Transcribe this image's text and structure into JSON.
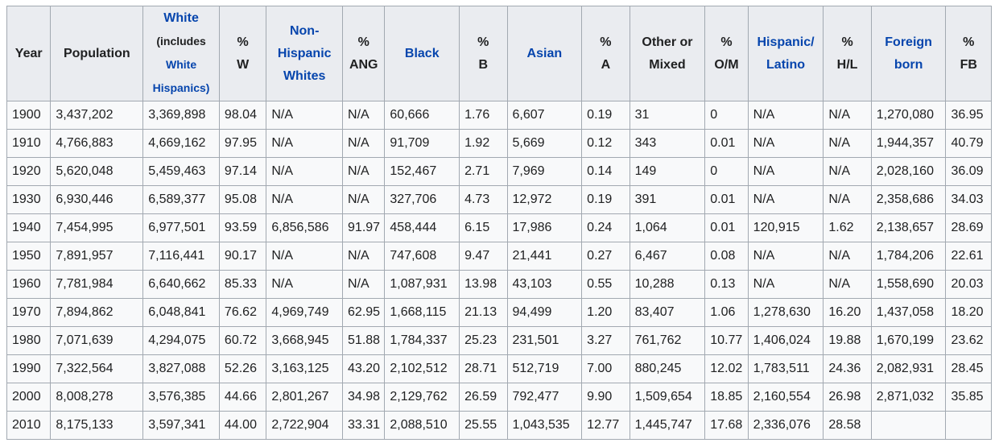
{
  "header": {
    "year": "Year",
    "population": "Population",
    "white_line1": "White",
    "white_line2": "(includes",
    "white_line3": "White",
    "white_line4": "Hispanics)",
    "pct_w_line1": "%",
    "pct_w_line2": "W",
    "nhw_line1": "Non-",
    "nhw_line2": "Hispanic",
    "nhw_line3": "Whites",
    "pct_ang_line1": "%",
    "pct_ang_line2": "ANG",
    "black": "Black",
    "pct_b_line1": "%",
    "pct_b_line2": "B",
    "asian": "Asian",
    "pct_a_line1": "%",
    "pct_a_line2": "A",
    "other_line1": "Other or",
    "other_line2": "Mixed",
    "pct_om_line1": "%",
    "pct_om_line2": "O/M",
    "hisp_line1": "Hispanic/",
    "hisp_line2": "Latino",
    "pct_hl_line1": "%",
    "pct_hl_line2": "H/L",
    "foreign_line1": "Foreign",
    "foreign_line2": "born",
    "pct_fb_line1": "%",
    "pct_fb_line2": "FB"
  },
  "rows": [
    {
      "year": "1900",
      "population": "3,437,202",
      "white": "3,369,898",
      "pct_w": "98.04",
      "nhw": "N/A",
      "pct_ang": "N/A",
      "black": "60,666",
      "pct_b": "1.76",
      "asian": "6,607",
      "pct_a": "0.19",
      "other": "31",
      "pct_om": "0",
      "hisp": "N/A",
      "pct_hl": "N/A",
      "foreign": "1,270,080",
      "pct_fb": "36.95"
    },
    {
      "year": "1910",
      "population": "4,766,883",
      "white": "4,669,162",
      "pct_w": "97.95",
      "nhw": "N/A",
      "pct_ang": "N/A",
      "black": "91,709",
      "pct_b": "1.92",
      "asian": "5,669",
      "pct_a": "0.12",
      "other": "343",
      "pct_om": "0.01",
      "hisp": "N/A",
      "pct_hl": "N/A",
      "foreign": "1,944,357",
      "pct_fb": "40.79"
    },
    {
      "year": "1920",
      "population": "5,620,048",
      "white": "5,459,463",
      "pct_w": "97.14",
      "nhw": "N/A",
      "pct_ang": "N/A",
      "black": "152,467",
      "pct_b": "2.71",
      "asian": "7,969",
      "pct_a": "0.14",
      "other": "149",
      "pct_om": "0",
      "hisp": "N/A",
      "pct_hl": "N/A",
      "foreign": "2,028,160",
      "pct_fb": "36.09"
    },
    {
      "year": "1930",
      "population": "6,930,446",
      "white": "6,589,377",
      "pct_w": "95.08",
      "nhw": "N/A",
      "pct_ang": "N/A",
      "black": "327,706",
      "pct_b": "4.73",
      "asian": "12,972",
      "pct_a": "0.19",
      "other": "391",
      "pct_om": "0.01",
      "hisp": "N/A",
      "pct_hl": "N/A",
      "foreign": "2,358,686",
      "pct_fb": "34.03"
    },
    {
      "year": "1940",
      "population": "7,454,995",
      "white": "6,977,501",
      "pct_w": "93.59",
      "nhw": "6,856,586",
      "pct_ang": "91.97",
      "black": "458,444",
      "pct_b": "6.15",
      "asian": "17,986",
      "pct_a": "0.24",
      "other": "1,064",
      "pct_om": "0.01",
      "hisp": "120,915",
      "pct_hl": "1.62",
      "foreign": "2,138,657",
      "pct_fb": "28.69"
    },
    {
      "year": "1950",
      "population": "7,891,957",
      "white": "7,116,441",
      "pct_w": "90.17",
      "nhw": "N/A",
      "pct_ang": "N/A",
      "black": "747,608",
      "pct_b": "9.47",
      "asian": "21,441",
      "pct_a": "0.27",
      "other": "6,467",
      "pct_om": "0.08",
      "hisp": "N/A",
      "pct_hl": "N/A",
      "foreign": "1,784,206",
      "pct_fb": "22.61"
    },
    {
      "year": "1960",
      "population": "7,781,984",
      "white": "6,640,662",
      "pct_w": "85.33",
      "nhw": "N/A",
      "pct_ang": "N/A",
      "black": "1,087,931",
      "pct_b": "13.98",
      "asian": "43,103",
      "pct_a": "0.55",
      "other": "10,288",
      "pct_om": "0.13",
      "hisp": "N/A",
      "pct_hl": "N/A",
      "foreign": "1,558,690",
      "pct_fb": "20.03"
    },
    {
      "year": "1970",
      "population": "7,894,862",
      "white": "6,048,841",
      "pct_w": "76.62",
      "nhw": "4,969,749",
      "pct_ang": "62.95",
      "black": "1,668,115",
      "pct_b": "21.13",
      "asian": "94,499",
      "pct_a": "1.20",
      "other": "83,407",
      "pct_om": "1.06",
      "hisp": "1,278,630",
      "pct_hl": "16.20",
      "foreign": "1,437,058",
      "pct_fb": "18.20"
    },
    {
      "year": "1980",
      "population": "7,071,639",
      "white": "4,294,075",
      "pct_w": "60.72",
      "nhw": "3,668,945",
      "pct_ang": "51.88",
      "black": "1,784,337",
      "pct_b": "25.23",
      "asian": "231,501",
      "pct_a": "3.27",
      "other": "761,762",
      "pct_om": "10.77",
      "hisp": "1,406,024",
      "pct_hl": "19.88",
      "foreign": "1,670,199",
      "pct_fb": "23.62"
    },
    {
      "year": "1990",
      "population": "7,322,564",
      "white": "3,827,088",
      "pct_w": "52.26",
      "nhw": "3,163,125",
      "pct_ang": "43.20",
      "black": "2,102,512",
      "pct_b": "28.71",
      "asian": "512,719",
      "pct_a": "7.00",
      "other": "880,245",
      "pct_om": "12.02",
      "hisp": "1,783,511",
      "pct_hl": "24.36",
      "foreign": "2,082,931",
      "pct_fb": "28.45"
    },
    {
      "year": "2000",
      "population": "8,008,278",
      "white": "3,576,385",
      "pct_w": "44.66",
      "nhw": "2,801,267",
      "pct_ang": "34.98",
      "black": "2,129,762",
      "pct_b": "26.59",
      "asian": "792,477",
      "pct_a": "9.90",
      "other": "1,509,654",
      "pct_om": "18.85",
      "hisp": "2,160,554",
      "pct_hl": "26.98",
      "foreign": "2,871,032",
      "pct_fb": "35.85"
    },
    {
      "year": "2010",
      "population": "8,175,133",
      "white": "3,597,341",
      "pct_w": "44.00",
      "nhw": "2,722,904",
      "pct_ang": "33.31",
      "black": "2,088,510",
      "pct_b": "25.55",
      "asian": "1,043,535",
      "pct_a": "12.77",
      "other": "1,445,747",
      "pct_om": "17.68",
      "hisp": "2,336,076",
      "pct_hl": "28.58",
      "foreign": "",
      "pct_fb": ""
    }
  ]
}
